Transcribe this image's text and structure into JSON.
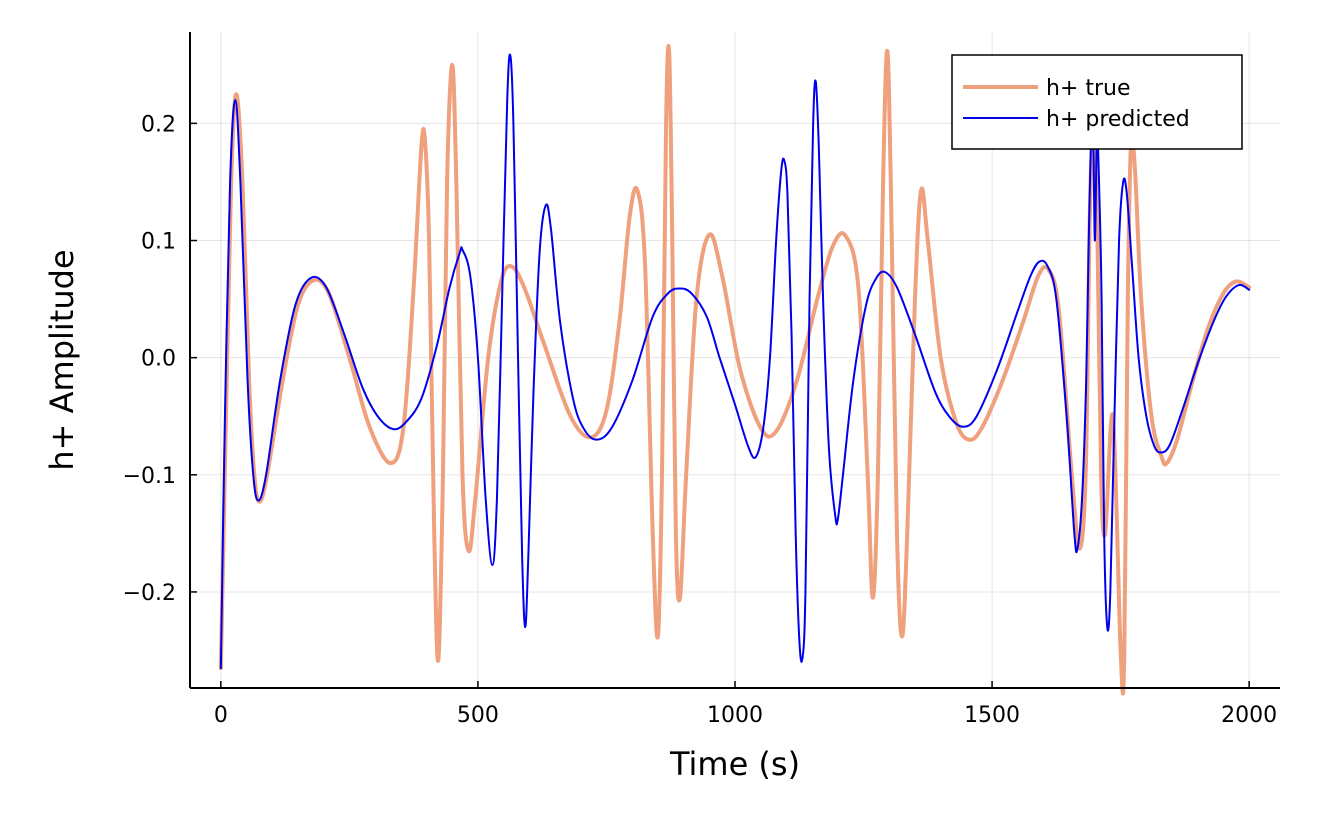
{
  "chart_data": {
    "type": "line",
    "title": "",
    "xlabel": "Time (s)",
    "ylabel": "h+ Amplitude",
    "xlim": [
      -60,
      2060
    ],
    "ylim": [
      -0.282,
      0.278
    ],
    "grid": true,
    "legend_position": "top-right",
    "x_ticks": [
      0,
      500,
      1000,
      1500,
      2000
    ],
    "x_tick_labels": [
      "0",
      "500",
      "1000",
      "1500",
      "2000"
    ],
    "y_ticks": [
      -0.2,
      -0.1,
      0.0,
      0.1,
      0.2
    ],
    "y_tick_labels": [
      "−0.2",
      "−0.1",
      "0.0",
      "0.1",
      "0.2"
    ],
    "series": [
      {
        "name": "h+ true",
        "color": "#EFA07C",
        "points": [
          [
            0,
            -0.265
          ],
          [
            10,
            -0.05
          ],
          [
            20,
            0.15
          ],
          [
            30,
            0.225
          ],
          [
            42,
            0.15
          ],
          [
            55,
            -0.02
          ],
          [
            65,
            -0.1
          ],
          [
            75,
            -0.123
          ],
          [
            90,
            -0.1
          ],
          [
            120,
            -0.02
          ],
          [
            150,
            0.045
          ],
          [
            180,
            0.066
          ],
          [
            210,
            0.055
          ],
          [
            250,
            0.0
          ],
          [
            290,
            -0.06
          ],
          [
            330,
            -0.09
          ],
          [
            355,
            -0.06
          ],
          [
            375,
            0.06
          ],
          [
            390,
            0.18
          ],
          [
            397,
            0.185
          ],
          [
            405,
            0.1
          ],
          [
            415,
            -0.15
          ],
          [
            423,
            -0.258
          ],
          [
            432,
            -0.1
          ],
          [
            440,
            0.15
          ],
          [
            450,
            0.25
          ],
          [
            458,
            0.15
          ],
          [
            470,
            -0.1
          ],
          [
            482,
            -0.165
          ],
          [
            495,
            -0.12
          ],
          [
            520,
            0.0
          ],
          [
            545,
            0.065
          ],
          [
            565,
            0.078
          ],
          [
            590,
            0.06
          ],
          [
            630,
            0.01
          ],
          [
            680,
            -0.05
          ],
          [
            720,
            -0.068
          ],
          [
            750,
            -0.045
          ],
          [
            775,
            0.03
          ],
          [
            795,
            0.12
          ],
          [
            810,
            0.143
          ],
          [
            825,
            0.08
          ],
          [
            840,
            -0.15
          ],
          [
            850,
            -0.238
          ],
          [
            858,
            -0.1
          ],
          [
            866,
            0.2
          ],
          [
            872,
            0.26
          ],
          [
            878,
            0.1
          ],
          [
            885,
            -0.15
          ],
          [
            893,
            -0.205
          ],
          [
            905,
            -0.1
          ],
          [
            925,
            0.05
          ],
          [
            950,
            0.105
          ],
          [
            975,
            0.07
          ],
          [
            1010,
            -0.01
          ],
          [
            1050,
            -0.06
          ],
          [
            1080,
            -0.063
          ],
          [
            1120,
            -0.02
          ],
          [
            1160,
            0.05
          ],
          [
            1190,
            0.095
          ],
          [
            1215,
            0.104
          ],
          [
            1240,
            0.06
          ],
          [
            1258,
            -0.1
          ],
          [
            1268,
            -0.205
          ],
          [
            1278,
            -0.1
          ],
          [
            1288,
            0.15
          ],
          [
            1296,
            0.262
          ],
          [
            1303,
            0.15
          ],
          [
            1315,
            -0.15
          ],
          [
            1325,
            -0.238
          ],
          [
            1335,
            -0.15
          ],
          [
            1350,
            0.05
          ],
          [
            1362,
            0.143
          ],
          [
            1375,
            0.1
          ],
          [
            1400,
            0.0
          ],
          [
            1430,
            -0.055
          ],
          [
            1455,
            -0.07
          ],
          [
            1480,
            -0.06
          ],
          [
            1520,
            -0.02
          ],
          [
            1560,
            0.03
          ],
          [
            1590,
            0.07
          ],
          [
            1610,
            0.075
          ],
          [
            1630,
            0.04
          ],
          [
            1655,
            -0.1
          ],
          [
            1670,
            -0.163
          ],
          [
            1682,
            -0.1
          ],
          [
            1690,
            0.12
          ],
          [
            1697,
            0.19
          ],
          [
            1705,
            0.1
          ],
          [
            1712,
            -0.1
          ],
          [
            1720,
            -0.15
          ],
          [
            1735,
            -0.05
          ],
          [
            1750,
            -0.25
          ],
          [
            1757,
            -0.258
          ],
          [
            1764,
            0.05
          ],
          [
            1770,
            0.18
          ],
          [
            1778,
            0.16
          ],
          [
            1790,
            0.05
          ],
          [
            1810,
            -0.05
          ],
          [
            1830,
            -0.085
          ],
          [
            1840,
            -0.09
          ],
          [
            1860,
            -0.07
          ],
          [
            1890,
            -0.02
          ],
          [
            1920,
            0.025
          ],
          [
            1950,
            0.055
          ],
          [
            1975,
            0.065
          ],
          [
            2000,
            0.06
          ]
        ]
      },
      {
        "name": "h+ predicted",
        "color": "#0000EE",
        "points": [
          [
            0,
            -0.265
          ],
          [
            8,
            -0.05
          ],
          [
            18,
            0.15
          ],
          [
            28,
            0.22
          ],
          [
            38,
            0.15
          ],
          [
            52,
            -0.02
          ],
          [
            63,
            -0.1
          ],
          [
            73,
            -0.122
          ],
          [
            88,
            -0.1
          ],
          [
            115,
            -0.02
          ],
          [
            145,
            0.045
          ],
          [
            175,
            0.068
          ],
          [
            205,
            0.06
          ],
          [
            240,
            0.02
          ],
          [
            275,
            -0.025
          ],
          [
            305,
            -0.05
          ],
          [
            335,
            -0.061
          ],
          [
            360,
            -0.055
          ],
          [
            390,
            -0.035
          ],
          [
            420,
            0.01
          ],
          [
            445,
            0.06
          ],
          [
            465,
            0.09
          ],
          [
            470,
            0.092
          ],
          [
            485,
            0.07
          ],
          [
            500,
            0.0
          ],
          [
            515,
            -0.12
          ],
          [
            528,
            -0.177
          ],
          [
            537,
            -0.12
          ],
          [
            547,
            0.05
          ],
          [
            557,
            0.22
          ],
          [
            563,
            0.258
          ],
          [
            569,
            0.2
          ],
          [
            578,
            0.0
          ],
          [
            586,
            -0.17
          ],
          [
            592,
            -0.23
          ],
          [
            598,
            -0.17
          ],
          [
            608,
            -0.03
          ],
          [
            620,
            0.09
          ],
          [
            632,
            0.13
          ],
          [
            642,
            0.11
          ],
          [
            660,
            0.03
          ],
          [
            685,
            -0.035
          ],
          [
            705,
            -0.06
          ],
          [
            730,
            -0.07
          ],
          [
            760,
            -0.06
          ],
          [
            800,
            -0.02
          ],
          [
            840,
            0.035
          ],
          [
            870,
            0.055
          ],
          [
            892,
            0.059
          ],
          [
            915,
            0.055
          ],
          [
            945,
            0.035
          ],
          [
            970,
            0.0
          ],
          [
            1000,
            -0.04
          ],
          [
            1025,
            -0.075
          ],
          [
            1040,
            -0.085
          ],
          [
            1055,
            -0.06
          ],
          [
            1068,
            0.0
          ],
          [
            1080,
            0.1
          ],
          [
            1090,
            0.16
          ],
          [
            1096,
            0.168
          ],
          [
            1102,
            0.14
          ],
          [
            1110,
            0.02
          ],
          [
            1118,
            -0.15
          ],
          [
            1125,
            -0.24
          ],
          [
            1131,
            -0.257
          ],
          [
            1137,
            -0.2
          ],
          [
            1145,
            0.05
          ],
          [
            1152,
            0.2
          ],
          [
            1157,
            0.236
          ],
          [
            1163,
            0.18
          ],
          [
            1172,
            0.04
          ],
          [
            1183,
            -0.08
          ],
          [
            1195,
            -0.135
          ],
          [
            1200,
            -0.138
          ],
          [
            1210,
            -0.1
          ],
          [
            1230,
            -0.02
          ],
          [
            1255,
            0.045
          ],
          [
            1275,
            0.068
          ],
          [
            1292,
            0.073
          ],
          [
            1315,
            0.06
          ],
          [
            1350,
            0.02
          ],
          [
            1390,
            -0.03
          ],
          [
            1420,
            -0.052
          ],
          [
            1445,
            -0.059
          ],
          [
            1470,
            -0.05
          ],
          [
            1510,
            -0.01
          ],
          [
            1550,
            0.04
          ],
          [
            1575,
            0.07
          ],
          [
            1592,
            0.082
          ],
          [
            1608,
            0.078
          ],
          [
            1625,
            0.05
          ],
          [
            1645,
            -0.05
          ],
          [
            1660,
            -0.15
          ],
          [
            1666,
            -0.163
          ],
          [
            1675,
            -0.12
          ],
          [
            1683,
            -0.02
          ],
          [
            1688,
            0.1
          ],
          [
            1693,
            0.19
          ],
          [
            1697,
            0.18
          ],
          [
            1700,
            0.1
          ],
          [
            1704,
            0.19
          ],
          [
            1708,
            0.15
          ],
          [
            1713,
            0.05
          ],
          [
            1718,
            -0.15
          ],
          [
            1724,
            -0.23
          ],
          [
            1730,
            -0.2
          ],
          [
            1738,
            -0.05
          ],
          [
            1747,
            0.1
          ],
          [
            1755,
            0.15
          ],
          [
            1762,
            0.14
          ],
          [
            1772,
            0.08
          ],
          [
            1785,
            0.0
          ],
          [
            1800,
            -0.05
          ],
          [
            1815,
            -0.075
          ],
          [
            1828,
            -0.081
          ],
          [
            1845,
            -0.075
          ],
          [
            1870,
            -0.045
          ],
          [
            1900,
            -0.005
          ],
          [
            1930,
            0.03
          ],
          [
            1955,
            0.052
          ],
          [
            1980,
            0.062
          ],
          [
            2000,
            0.058
          ]
        ]
      }
    ]
  }
}
